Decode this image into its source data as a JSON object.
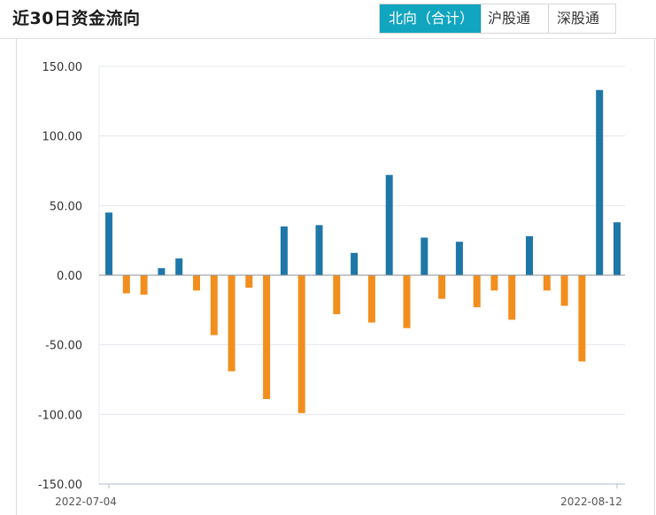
{
  "header": {
    "title": "近30日资金流向",
    "tabs": [
      {
        "label": "北向（合计）",
        "active": true
      },
      {
        "label": "沪股通",
        "active": false
      },
      {
        "label": "深股通",
        "active": false
      }
    ]
  },
  "colors": {
    "positive": "#1f77a8",
    "negative": "#f28e1e",
    "tab_active": "#12a5bf",
    "grid": "#e4e8ee"
  },
  "chart_data": {
    "type": "bar",
    "ylim": [
      -150,
      150
    ],
    "yticks": [
      "150.00",
      "100.00",
      "50.00",
      "0.00",
      "-50.00",
      "-100.00",
      "-150.00"
    ],
    "x_labels": [
      "2022-07-04",
      "2022-08-12"
    ],
    "values": [
      45,
      -13,
      -14,
      5,
      12,
      -11,
      -43,
      -69,
      -9,
      -89,
      35,
      -99,
      36,
      -28,
      16,
      -34,
      72,
      -38,
      27,
      -17,
      24,
      -23,
      -11,
      -32,
      28,
      -11,
      -22,
      -62,
      133,
      38
    ]
  }
}
